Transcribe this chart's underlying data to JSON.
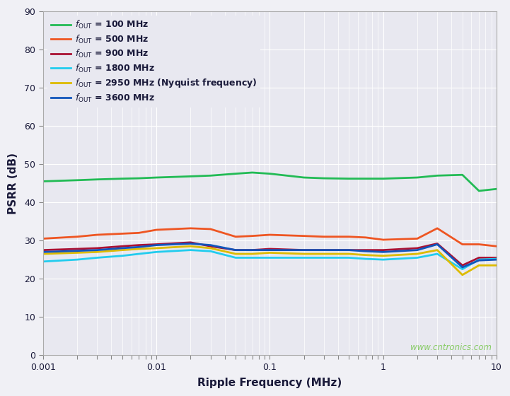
{
  "xlabel": "Ripple Frequency (MHz)",
  "ylabel": "PSRR (dB)",
  "xlim": [
    0.001,
    10
  ],
  "ylim": [
    0,
    90
  ],
  "yticks": [
    0,
    10,
    20,
    30,
    40,
    50,
    60,
    70,
    80,
    90
  ],
  "fig_bg_color": "#f0f0f5",
  "plot_bg_color": "#e8e8f0",
  "grid_color": "#ffffff",
  "text_color": "#1a1a3a",
  "watermark": "www.cntronics.com",
  "watermark_color": "#88cc66",
  "series": [
    {
      "label_base": "f",
      "label_sub": "OUT",
      "label_val": " = 100 MHz",
      "color": "#22bb55",
      "linewidth": 2.0,
      "x": [
        0.001,
        0.002,
        0.003,
        0.005,
        0.007,
        0.01,
        0.02,
        0.03,
        0.05,
        0.07,
        0.1,
        0.2,
        0.3,
        0.5,
        0.7,
        1.0,
        2.0,
        3.0,
        5.0,
        7.0,
        10.0
      ],
      "y": [
        45.5,
        45.8,
        46.0,
        46.2,
        46.3,
        46.5,
        46.8,
        47.0,
        47.5,
        47.8,
        47.5,
        46.5,
        46.3,
        46.2,
        46.2,
        46.2,
        46.5,
        47.0,
        47.2,
        43.0,
        43.5
      ]
    },
    {
      "label_base": "f",
      "label_sub": "OUT",
      "label_val": " = 500 MHz",
      "color": "#ee5522",
      "linewidth": 2.0,
      "x": [
        0.001,
        0.002,
        0.003,
        0.005,
        0.007,
        0.01,
        0.02,
        0.03,
        0.05,
        0.07,
        0.1,
        0.2,
        0.3,
        0.5,
        0.7,
        1.0,
        2.0,
        3.0,
        5.0,
        7.0,
        10.0
      ],
      "y": [
        30.5,
        31.0,
        31.5,
        31.8,
        32.0,
        32.8,
        33.2,
        33.0,
        31.0,
        31.2,
        31.5,
        31.2,
        31.0,
        31.0,
        30.8,
        30.2,
        30.5,
        33.2,
        29.0,
        29.0,
        28.5
      ]
    },
    {
      "label_base": "f",
      "label_sub": "OUT",
      "label_val": " = 900 MHz",
      "color": "#aa1133",
      "linewidth": 2.0,
      "x": [
        0.001,
        0.002,
        0.003,
        0.005,
        0.007,
        0.01,
        0.02,
        0.03,
        0.05,
        0.07,
        0.1,
        0.2,
        0.3,
        0.5,
        0.7,
        1.0,
        2.0,
        3.0,
        5.0,
        7.0,
        10.0
      ],
      "y": [
        27.5,
        27.8,
        28.0,
        28.5,
        28.8,
        29.0,
        29.5,
        28.5,
        27.5,
        27.5,
        27.8,
        27.5,
        27.5,
        27.5,
        27.5,
        27.5,
        28.0,
        29.2,
        23.5,
        25.5,
        25.5
      ]
    },
    {
      "label_base": "f",
      "label_sub": "OUT",
      "label_val": " = 1800 MHz",
      "color": "#22ccee",
      "linewidth": 2.0,
      "x": [
        0.001,
        0.002,
        0.003,
        0.005,
        0.007,
        0.01,
        0.02,
        0.03,
        0.05,
        0.07,
        0.1,
        0.2,
        0.3,
        0.5,
        0.7,
        1.0,
        2.0,
        3.0,
        5.0,
        7.0,
        10.0
      ],
      "y": [
        24.5,
        25.0,
        25.5,
        26.0,
        26.5,
        27.0,
        27.5,
        27.2,
        25.5,
        25.5,
        25.5,
        25.5,
        25.5,
        25.5,
        25.2,
        25.0,
        25.5,
        26.5,
        22.5,
        25.0,
        25.2
      ]
    },
    {
      "label_base": "f",
      "label_sub": "OUT",
      "label_val": " = 2950 MHz (Nyquist frequency)",
      "color": "#ddbb00",
      "linewidth": 2.0,
      "x": [
        0.001,
        0.002,
        0.003,
        0.005,
        0.007,
        0.01,
        0.02,
        0.03,
        0.05,
        0.07,
        0.1,
        0.2,
        0.3,
        0.5,
        0.7,
        1.0,
        2.0,
        3.0,
        5.0,
        7.0,
        10.0
      ],
      "y": [
        26.5,
        26.8,
        27.0,
        27.5,
        27.8,
        28.0,
        28.5,
        28.0,
        26.5,
        26.5,
        26.8,
        26.5,
        26.5,
        26.5,
        26.2,
        26.0,
        26.5,
        27.5,
        21.0,
        23.5,
        23.5
      ]
    },
    {
      "label_base": "f",
      "label_sub": "OUT",
      "label_val": " = 3600 MHz",
      "color": "#1155bb",
      "linewidth": 2.0,
      "x": [
        0.001,
        0.002,
        0.003,
        0.005,
        0.007,
        0.01,
        0.02,
        0.03,
        0.05,
        0.07,
        0.1,
        0.2,
        0.3,
        0.5,
        0.7,
        1.0,
        2.0,
        3.0,
        5.0,
        7.0,
        10.0
      ],
      "y": [
        27.0,
        27.3,
        27.5,
        28.0,
        28.3,
        28.8,
        29.2,
        28.8,
        27.5,
        27.5,
        27.5,
        27.5,
        27.5,
        27.5,
        27.2,
        27.0,
        27.5,
        29.0,
        23.0,
        24.8,
        25.0
      ]
    }
  ]
}
